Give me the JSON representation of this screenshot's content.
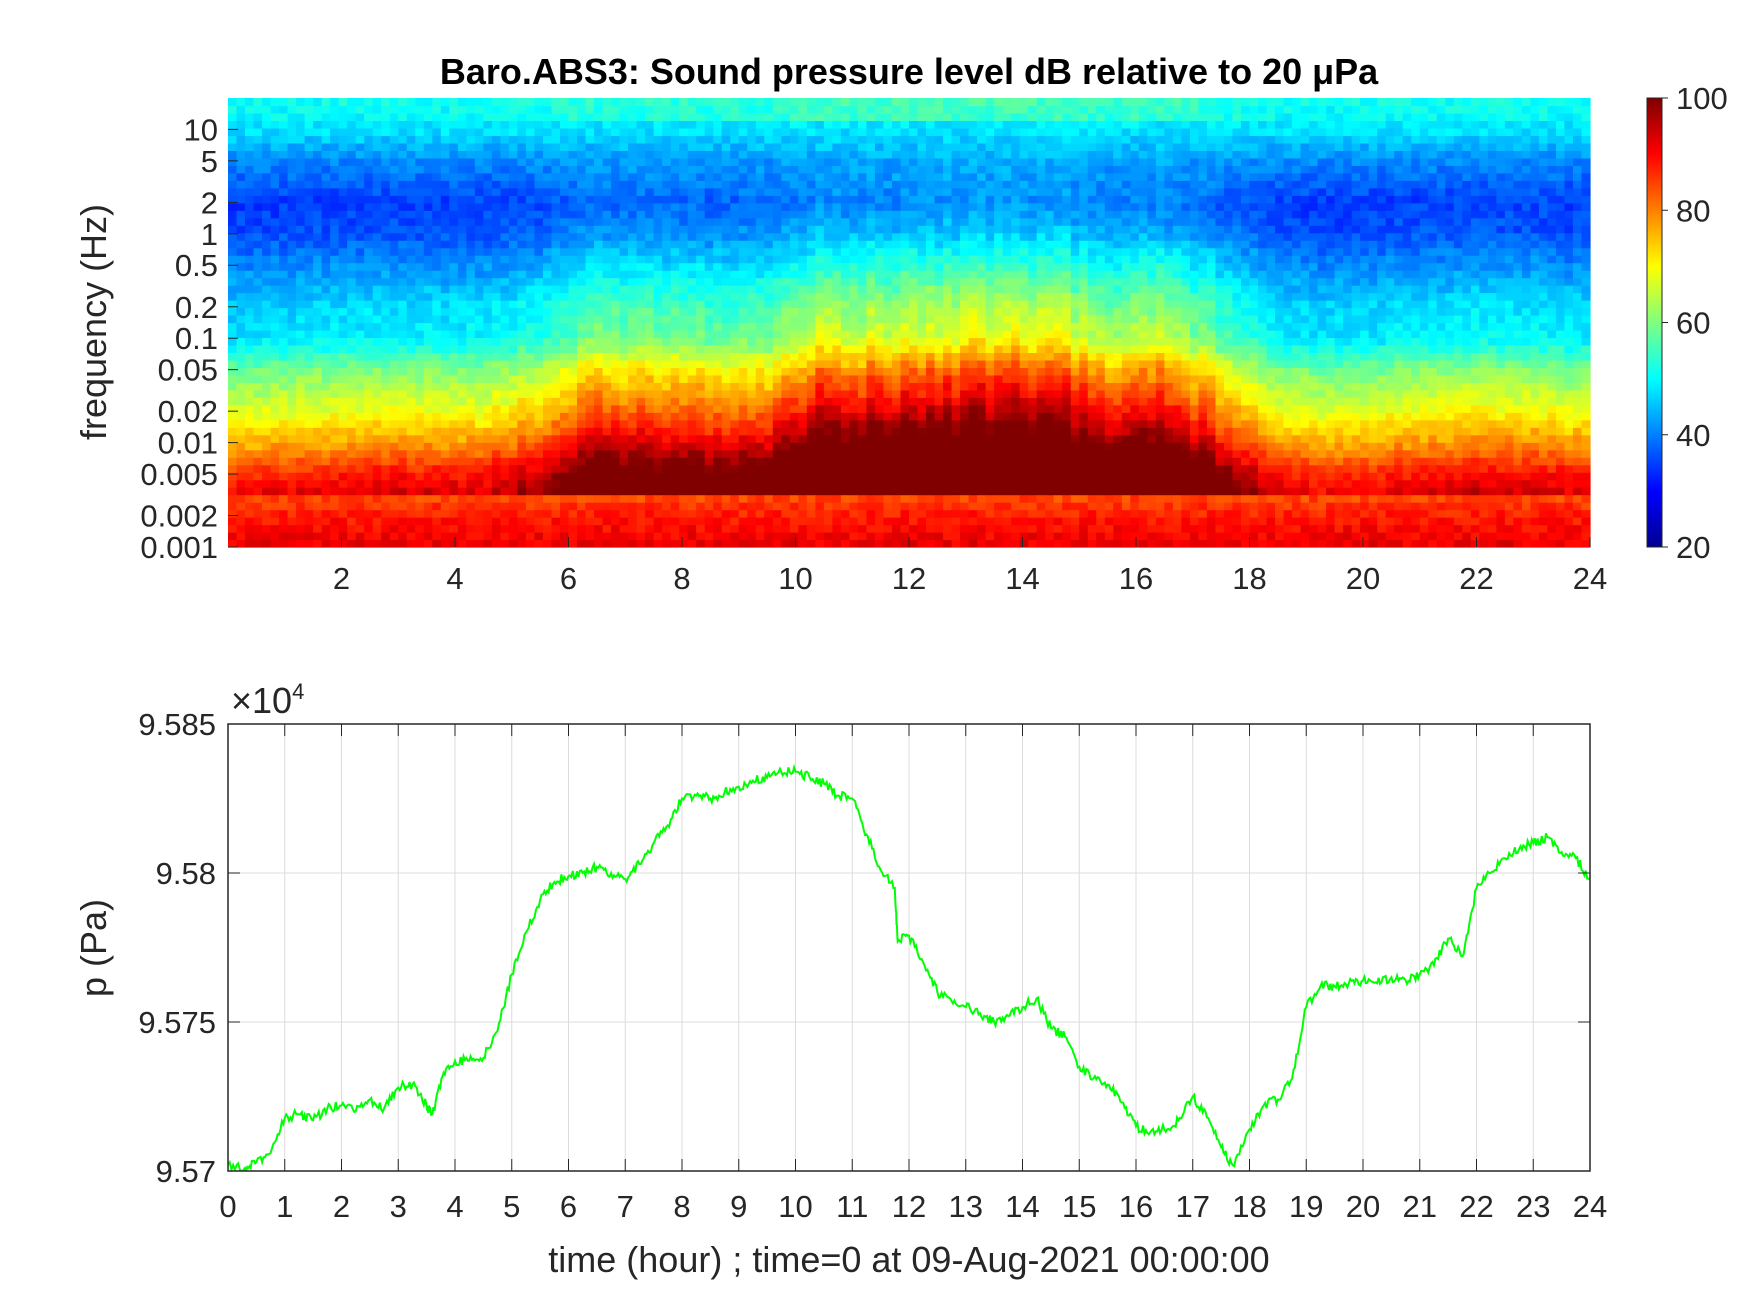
{
  "chart_data": [
    {
      "type": "heatmap",
      "title": "Baro.ABS3: Sound pressure level dB relative to 20 μPa",
      "xlabel": "",
      "ylabel": "frequency (Hz)",
      "xlim": [
        0,
        24
      ],
      "ylim": [
        0.001,
        20
      ],
      "yscale": "log",
      "x_ticks": [
        2,
        4,
        6,
        8,
        10,
        12,
        14,
        16,
        18,
        20,
        22,
        24
      ],
      "x_tick_labels": [
        "2",
        "4",
        "6",
        "8",
        "10",
        "12",
        "14",
        "16",
        "18",
        "20",
        "22",
        "24"
      ],
      "y_ticks": [
        0.001,
        0.002,
        0.005,
        0.01,
        0.02,
        0.05,
        0.1,
        0.2,
        0.5,
        1,
        2,
        5,
        10
      ],
      "y_tick_labels": [
        "0.001",
        "0.002",
        "0.005",
        "0.01",
        "0.02",
        "0.05",
        "0.1",
        "0.2",
        "0.5",
        "1",
        "2",
        "5",
        "10"
      ],
      "colormap": "jet",
      "colorbar": {
        "clim": [
          20,
          100
        ],
        "ticks": [
          20,
          40,
          60,
          80,
          100
        ],
        "tick_labels": [
          "20",
          "40",
          "60",
          "80",
          "100"
        ]
      },
      "hour_activity": [
        0.15,
        0.18,
        0.22,
        0.2,
        0.22,
        0.35,
        0.6,
        0.6,
        0.55,
        0.55,
        0.95,
        0.85,
        1.0,
        0.95,
        1.0,
        0.75,
        0.85,
        0.5,
        0.2,
        0.15,
        0.2,
        0.22,
        0.25,
        0.2
      ],
      "band_levels_db": {
        "0.001": 92,
        "0.002": 88,
        "0.005": 80,
        "0.01": 70,
        "0.02": 62,
        "0.05": 54,
        "0.1": 44,
        "0.2": 43,
        "0.5": 38,
        "1": 34,
        "2": 33,
        "5": 40,
        "10": 48,
        "20": 50
      }
    },
    {
      "type": "line",
      "title": "",
      "xlabel": "time (hour) ; time=0 at 09-Aug-2021 00:00:00",
      "ylabel": "p (Pa)",
      "xlim": [
        0,
        24
      ],
      "ylim": [
        95700,
        95850
      ],
      "y_exponent_label": "×10",
      "y_exponent_power": "4",
      "grid": true,
      "x_ticks": [
        0,
        1,
        2,
        3,
        4,
        5,
        6,
        7,
        8,
        9,
        10,
        11,
        12,
        13,
        14,
        15,
        16,
        17,
        18,
        19,
        20,
        21,
        22,
        23,
        24
      ],
      "x_tick_labels": [
        "0",
        "1",
        "2",
        "3",
        "4",
        "5",
        "6",
        "7",
        "8",
        "9",
        "10",
        "11",
        "12",
        "13",
        "14",
        "15",
        "16",
        "17",
        "18",
        "19",
        "20",
        "21",
        "22",
        "23",
        "24"
      ],
      "y_ticks": [
        95700,
        95750,
        95800,
        95850
      ],
      "y_tick_labels": [
        "9.57",
        "9.575",
        "9.58",
        "9.585"
      ],
      "line_color": "#00ff00",
      "series": [
        {
          "x": [
            0,
            0.3,
            0.5,
            0.75,
            1,
            1.25,
            1.5,
            1.75,
            2,
            2.25,
            2.5,
            2.75,
            3,
            3.25,
            3.5,
            3.6,
            3.8,
            4,
            4.25,
            4.5,
            4.75,
            5,
            5.25,
            5.5,
            5.75,
            6,
            6.25,
            6.5,
            6.75,
            7,
            7.25,
            7.5,
            7.75,
            8,
            8.25,
            8.5,
            8.75,
            9,
            9.25,
            9.5,
            9.75,
            10,
            10.25,
            10.5,
            10.75,
            11,
            11.25,
            11.5,
            11.75,
            11.8,
            12,
            12.25,
            12.5,
            12.75,
            13,
            13.25,
            13.5,
            13.75,
            14,
            14.25,
            14.5,
            14.75,
            15,
            15.25,
            15.5,
            15.75,
            16,
            16.25,
            16.5,
            16.75,
            17,
            17.25,
            17.5,
            17.7,
            18,
            18.25,
            18.5,
            18.75,
            19,
            19.25,
            19.5,
            19.75,
            20,
            20.25,
            20.5,
            20.75,
            21,
            21.25,
            21.5,
            21.75,
            22,
            22.25,
            22.5,
            22.75,
            23,
            23.25,
            23.5,
            23.75,
            24
          ],
          "y": [
            95702,
            95701,
            95703,
            95706,
            95718,
            95719,
            95717,
            95721,
            95722,
            95720,
            95724,
            95721,
            95728,
            95729,
            95722,
            95719,
            95733,
            95737,
            95737,
            95738,
            95747,
            95766,
            95780,
            95791,
            95797,
            95799,
            95800,
            95802,
            95800,
            95798,
            95803,
            95810,
            95816,
            95825,
            95826,
            95825,
            95827,
            95829,
            95831,
            95832,
            95834,
            95834,
            95832,
            95830,
            95826,
            95825,
            95813,
            95801,
            95795,
            95777,
            95779,
            95770,
            95760,
            95757,
            95755,
            95753,
            95750,
            95752,
            95755,
            95758,
            95748,
            95745,
            95735,
            95731,
            95729,
            95723,
            95715,
            95713,
            95714,
            95717,
            95725,
            95718,
            95708,
            95702,
            95714,
            95722,
            95724,
            95731,
            95755,
            95762,
            95762,
            95763,
            95764,
            95763,
            95765,
            95764,
            95766,
            95769,
            95778,
            95772,
            95795,
            95800,
            95805,
            95808,
            95810,
            95812,
            95807,
            95805,
            95798
          ]
        }
      ]
    }
  ]
}
